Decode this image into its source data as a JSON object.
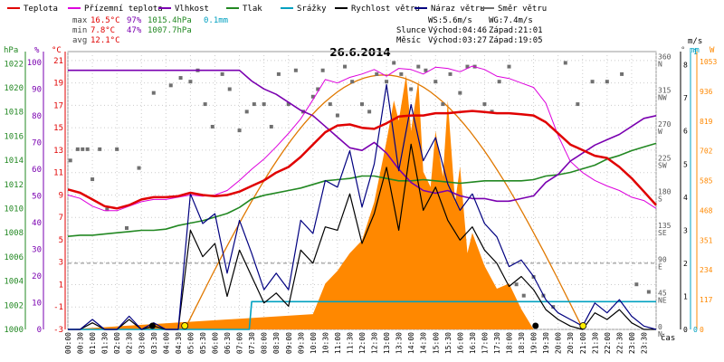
{
  "legend": [
    {
      "label": "Teplota",
      "color": "#e00000"
    },
    {
      "label": "Přízemní teplota",
      "color": "#dd00dd"
    },
    {
      "label": "Vlhkost",
      "color": "#7a00b0"
    },
    {
      "label": "Tlak",
      "color": "#228822"
    },
    {
      "label": "Srážky",
      "color": "#00a0c0"
    },
    {
      "label": "Rychlost větru",
      "color": "#000000"
    },
    {
      "label": "Náraz větru",
      "color": "#000080"
    },
    {
      "label": "Směr větru",
      "color": "#707070"
    }
  ],
  "stats": {
    "max_label": "max",
    "max_temp": "16.5°C",
    "max_hum": "97%",
    "max_press": "1015.4hPa",
    "max_rain": "0.1mm",
    "min_label": "min",
    "min_temp": "7.8°C",
    "min_hum": "47%",
    "min_press": "1007.7hPa",
    "avg_label": "avg",
    "avg_temp": "12.1°C"
  },
  "wind_info": {
    "ws": "WS:5.6m/s",
    "wg": "WG:7.4m/s"
  },
  "sun_info": {
    "label": "Slunce",
    "rise": "Východ:04:46",
    "set": "Západ:21:01"
  },
  "moon_info": {
    "label": "Měsíc",
    "rise": "Východ:03:27",
    "set": "Západ:19:05"
  },
  "units": {
    "hpa": "hPa",
    "pct": "%",
    "degc": "°C",
    "deg": "°",
    "ms": "m/s",
    "mm": "mm",
    "w": "W",
    "time": "čas"
  },
  "colors": {
    "temp": "#e00000",
    "ground": "#dd00dd",
    "hum": "#7a00b0",
    "press": "#228822",
    "rain": "#00a0c0",
    "wind": "#000000",
    "gust": "#000080",
    "dir": "#707070",
    "solar": "#ff8800",
    "sun": "#e07800"
  },
  "chart_data": {
    "type": "line",
    "title": "26.6.2014",
    "xlabel": "čas",
    "x_ticks": [
      "00:00",
      "00:30",
      "01:00",
      "01:30",
      "02:00",
      "02:30",
      "03:00",
      "03:30",
      "04:00",
      "04:30",
      "05:00",
      "05:30",
      "06:00",
      "06:30",
      "07:00",
      "07:30",
      "08:00",
      "08:30",
      "09:00",
      "09:30",
      "10:00",
      "10:30",
      "11:00",
      "11:30",
      "12:00",
      "12:30",
      "13:00",
      "13:30",
      "14:00",
      "14:30",
      "15:00",
      "15:30",
      "16:00",
      "16:30",
      "17:00",
      "17:30",
      "18:00",
      "18:30",
      "19:00",
      "19:30",
      "20:00",
      "20:30",
      "21:00",
      "21:30",
      "22:00",
      "22:30",
      "23:00",
      "23:30"
    ],
    "axes": {
      "pressure": {
        "unit": "hPa",
        "ticks": [
          1000,
          1002,
          1004,
          1006,
          1008,
          1010,
          1012,
          1014,
          1016,
          1018,
          1020,
          1022
        ],
        "range": [
          1000,
          1023
        ]
      },
      "humidity": {
        "unit": "%",
        "ticks": [
          0,
          10,
          20,
          30,
          40,
          50,
          60,
          70,
          80,
          90,
          100
        ],
        "range": [
          0,
          104
        ]
      },
      "temperature": {
        "unit": "°C",
        "ticks": [
          -3,
          -1,
          1,
          3,
          5,
          7,
          9,
          11,
          13,
          15,
          17,
          19,
          21
        ],
        "range": [
          -3,
          21.8
        ]
      },
      "direction": {
        "unit": "°",
        "ticks": [
          {
            "v": 0,
            "dir": "N"
          },
          {
            "v": 45,
            "dir": "NE"
          },
          {
            "v": 90,
            "dir": "E"
          },
          {
            "v": 135,
            "dir": "SE"
          },
          {
            "v": 180,
            "dir": "S"
          },
          {
            "v": 225,
            "dir": "SW"
          },
          {
            "v": 270,
            "dir": "W"
          },
          {
            "v": 315,
            "dir": "NW"
          },
          {
            "v": 360,
            "dir": "N"
          }
        ],
        "range": [
          0,
          370
        ]
      },
      "wind": {
        "unit": "m/s",
        "ticks": [
          0,
          1,
          2,
          3,
          4,
          5,
          6,
          7,
          8
        ],
        "range": [
          0,
          8.4
        ]
      },
      "rain": {
        "unit": "mm",
        "ticks": [
          0,
          1
        ],
        "range": [
          0,
          1
        ]
      },
      "solar": {
        "unit": "W",
        "ticks": [
          0,
          117,
          234,
          351,
          468,
          585,
          702,
          819,
          936,
          1053
        ],
        "range": [
          0,
          1092
        ]
      }
    },
    "series": [
      {
        "name": "Teplota",
        "axis": "temperature",
        "x": [
          0,
          0.5,
          1,
          1.5,
          2,
          2.5,
          3,
          3.5,
          4,
          4.5,
          5,
          5.5,
          6,
          6.5,
          7,
          7.5,
          8,
          8.5,
          9,
          9.5,
          10,
          10.5,
          11,
          11.5,
          12,
          12.5,
          13,
          13.5,
          14,
          14.5,
          15,
          15.5,
          16,
          16.5,
          17,
          17.5,
          18,
          18.5,
          19,
          19.5,
          20,
          20.5,
          21,
          21.5,
          22,
          22.5,
          23,
          23.5,
          24
        ],
        "values": [
          9.5,
          9.2,
          8.6,
          8.0,
          7.8,
          8.1,
          8.6,
          8.8,
          8.8,
          8.9,
          9.2,
          9.0,
          8.9,
          9.0,
          9.3,
          9.8,
          10.3,
          11.0,
          11.5,
          12.4,
          13.5,
          14.6,
          15.2,
          15.3,
          15.0,
          14.9,
          15.4,
          16.0,
          16.1,
          16.1,
          16.3,
          16.3,
          16.4,
          16.5,
          16.4,
          16.3,
          16.3,
          16.2,
          16.1,
          15.5,
          14.5,
          13.5,
          13.0,
          12.5,
          12.3,
          11.5,
          10.5,
          9.3,
          8.1
        ]
      },
      {
        "name": "Přízemní teplota",
        "axis": "temperature",
        "x": [
          0,
          0.5,
          1,
          1.5,
          2,
          2.5,
          3,
          3.5,
          4,
          4.5,
          5,
          5.5,
          6,
          6.5,
          7,
          7.5,
          8,
          8.5,
          9,
          9.5,
          10,
          10.5,
          11,
          11.5,
          12,
          12.5,
          13,
          13.5,
          14,
          14.5,
          15,
          15.5,
          16,
          16.5,
          17,
          17.5,
          18,
          18.5,
          19,
          19.5,
          20,
          20.5,
          21,
          21.5,
          22,
          22.5,
          23,
          23.5,
          24
        ],
        "values": [
          9.0,
          8.7,
          8.0,
          7.6,
          7.6,
          8.0,
          8.4,
          8.6,
          8.6,
          8.8,
          9.0,
          8.9,
          9.0,
          9.4,
          10.3,
          11.3,
          12.2,
          13.3,
          14.5,
          15.8,
          17.5,
          19.3,
          19.0,
          19.5,
          19.8,
          20.2,
          19.6,
          20.3,
          20.2,
          19.8,
          20.4,
          20.3,
          20.0,
          20.5,
          20.2,
          19.6,
          19.4,
          19.0,
          18.6,
          17.2,
          14.3,
          12.0,
          11.0,
          10.3,
          9.8,
          9.4,
          8.8,
          8.5,
          7.8
        ]
      },
      {
        "name": "Vlhkost",
        "axis": "humidity",
        "x": [
          0,
          0.5,
          1,
          1.5,
          2,
          2.5,
          3,
          3.5,
          4,
          4.5,
          5,
          5.5,
          6,
          6.5,
          7,
          7.5,
          8,
          8.5,
          9,
          9.5,
          10,
          10.5,
          11,
          11.5,
          12,
          12.5,
          13,
          13.5,
          14,
          14.5,
          15,
          15.5,
          16,
          16.5,
          17,
          17.5,
          18,
          18.5,
          19,
          19.5,
          20,
          20.5,
          21,
          21.5,
          22,
          22.5,
          23,
          23.5,
          24
        ],
        "values": [
          97,
          97,
          97,
          97,
          97,
          97,
          97,
          97,
          97,
          97,
          97,
          97,
          97,
          97,
          97,
          93,
          90,
          88,
          85,
          82,
          80,
          76,
          72,
          68,
          67,
          70,
          66,
          60,
          55,
          52,
          51,
          52,
          50,
          49,
          49,
          48,
          48,
          49,
          50,
          55,
          58,
          63,
          66,
          69,
          71,
          73,
          76,
          79,
          80
        ]
      },
      {
        "name": "Tlak",
        "axis": "pressure",
        "x": [
          0,
          0.5,
          1,
          1.5,
          2,
          2.5,
          3,
          3.5,
          4,
          4.5,
          5,
          5.5,
          6,
          6.5,
          7,
          7.5,
          8,
          8.5,
          9,
          9.5,
          10,
          10.5,
          11,
          11.5,
          12,
          12.5,
          13,
          13.5,
          14,
          14.5,
          15,
          15.5,
          16,
          16.5,
          17,
          17.5,
          18,
          18.5,
          19,
          19.5,
          20,
          20.5,
          21,
          21.5,
          22,
          22.5,
          23,
          23.5,
          24
        ],
        "values": [
          1007.7,
          1007.8,
          1007.8,
          1007.9,
          1008.0,
          1008.1,
          1008.2,
          1008.2,
          1008.3,
          1008.6,
          1008.8,
          1009.0,
          1009.3,
          1009.6,
          1010.1,
          1010.8,
          1011.1,
          1011.3,
          1011.5,
          1011.7,
          1012.0,
          1012.3,
          1012.4,
          1012.5,
          1012.7,
          1012.7,
          1012.5,
          1012.3,
          1012.3,
          1012.4,
          1012.3,
          1012.2,
          1012.1,
          1012.2,
          1012.3,
          1012.3,
          1012.3,
          1012.3,
          1012.4,
          1012.7,
          1012.8,
          1013.0,
          1013.3,
          1013.6,
          1014.1,
          1014.4,
          1014.8,
          1015.1,
          1015.4
        ]
      },
      {
        "name": "Srážky",
        "axis": "rain",
        "x": [
          0,
          7.4,
          7.5,
          24
        ],
        "values": [
          0,
          0,
          0.1,
          0.1
        ]
      },
      {
        "name": "Rychlost větru",
        "axis": "wind",
        "x": [
          0,
          0.5,
          1,
          1.5,
          2,
          2.5,
          3,
          3.5,
          4,
          4.5,
          5,
          5.5,
          6,
          6.5,
          7,
          7.5,
          8,
          8.5,
          9,
          9.5,
          10,
          10.5,
          11,
          11.5,
          12,
          12.5,
          13,
          13.5,
          14,
          14.5,
          15,
          15.5,
          16,
          16.5,
          17,
          17.5,
          18,
          18.5,
          19,
          19.5,
          20,
          20.5,
          21,
          21.5,
          22,
          22.5,
          23,
          23.5,
          24
        ],
        "values": [
          0,
          0,
          0.2,
          0,
          0,
          0.3,
          0,
          0.1,
          0,
          0,
          3.0,
          2.2,
          2.6,
          1.0,
          2.4,
          1.6,
          0.8,
          1.1,
          0.7,
          2.4,
          2.0,
          3.1,
          3.0,
          4.1,
          2.6,
          3.5,
          4.9,
          3.0,
          5.6,
          3.6,
          4.3,
          3.3,
          2.7,
          3.1,
          2.4,
          2.0,
          1.3,
          1.6,
          1.2,
          0.6,
          0.3,
          0.1,
          0,
          0.5,
          0.3,
          0.6,
          0.2,
          0,
          0
        ]
      },
      {
        "name": "Náraz větru",
        "axis": "wind",
        "x": [
          0,
          0.5,
          1,
          1.5,
          2,
          2.5,
          3,
          3.5,
          4,
          4.5,
          5,
          5.5,
          6,
          6.5,
          7,
          7.5,
          8,
          8.5,
          9,
          9.5,
          10,
          10.5,
          11,
          11.5,
          12,
          12.5,
          13,
          13.5,
          14,
          14.5,
          15,
          15.5,
          16,
          16.5,
          17,
          17.5,
          18,
          18.5,
          19,
          19.5,
          20,
          20.5,
          21,
          21.5,
          22,
          22.5,
          23,
          23.5,
          24
        ],
        "values": [
          0,
          0,
          0.3,
          0,
          0,
          0.4,
          0,
          0.2,
          0,
          0,
          4.1,
          3.2,
          3.5,
          1.7,
          3.3,
          2.3,
          1.2,
          1.7,
          1.2,
          3.3,
          2.9,
          4.5,
          4.3,
          5.4,
          3.7,
          5.0,
          7.4,
          4.8,
          6.8,
          5.1,
          5.8,
          4.4,
          3.6,
          4.1,
          3.2,
          2.8,
          1.9,
          2.1,
          1.6,
          0.9,
          0.5,
          0.3,
          0.1,
          0.8,
          0.5,
          0.9,
          0.4,
          0.1,
          0
        ]
      },
      {
        "name": "Směr větru",
        "axis": "direction",
        "x": [
          0.1,
          0.4,
          0.6,
          0.8,
          1.0,
          1.3,
          1.6,
          2.0,
          2.4,
          2.9,
          3.5,
          4.2,
          4.6,
          5.0,
          5.3,
          5.6,
          5.9,
          6.3,
          6.6,
          7.0,
          7.3,
          7.6,
          8.0,
          8.3,
          8.6,
          9.0,
          9.3,
          9.6,
          10.0,
          10.2,
          10.4,
          10.7,
          11.0,
          11.3,
          11.6,
          12.0,
          12.3,
          12.6,
          13.0,
          13.3,
          13.6,
          14.0,
          14.3,
          14.6,
          15.0,
          15.3,
          15.6,
          16.0,
          16.3,
          16.6,
          17.0,
          17.3,
          17.6,
          18.0,
          18.3,
          18.6,
          19.0,
          19.4,
          19.8,
          20.3,
          20.8,
          21.4,
          22.0,
          22.6,
          23.2,
          23.7
        ],
        "values": [
          225,
          240,
          240,
          240,
          200,
          240,
          160,
          240,
          135,
          215,
          315,
          325,
          335,
          330,
          345,
          300,
          270,
          340,
          320,
          265,
          290,
          300,
          300,
          270,
          340,
          300,
          345,
          290,
          310,
          320,
          345,
          300,
          285,
          350,
          330,
          300,
          290,
          340,
          330,
          355,
          340,
          320,
          350,
          345,
          330,
          300,
          340,
          315,
          350,
          350,
          300,
          290,
          330,
          350,
          60,
          45,
          70,
          45,
          30,
          355,
          300,
          330,
          330,
          340,
          60,
          50
        ]
      },
      {
        "name": "Solar",
        "axis": "solar",
        "x": [
          0,
          10.0,
          10.5,
          11.0,
          11.5,
          12.0,
          12.5,
          13.0,
          13.3,
          13.5,
          13.8,
          14.0,
          14.3,
          14.5,
          14.8,
          15.0,
          15.3,
          15.5,
          15.8,
          16.0,
          16.3,
          16.5,
          17.0,
          17.5,
          18.0,
          18.5,
          19.0,
          24
        ],
        "values": [
          0,
          60,
          180,
          230,
          300,
          350,
          500,
          740,
          900,
          820,
          1000,
          780,
          980,
          620,
          560,
          780,
          600,
          900,
          500,
          640,
          300,
          380,
          250,
          160,
          180,
          80,
          0,
          0
        ]
      }
    ]
  }
}
